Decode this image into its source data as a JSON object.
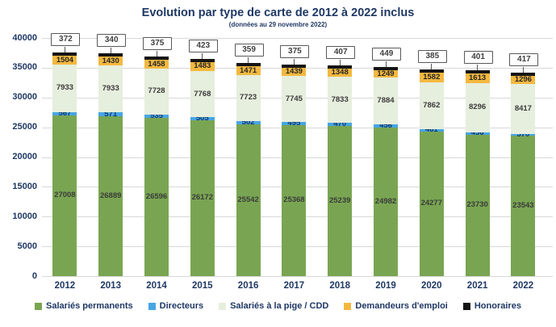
{
  "title": "Evolution par type de carte de 2012 à 2022 inclus",
  "subtitle": "(données au 29 novembre 2022)",
  "colors": {
    "title_text": "#1F3864",
    "axis_text": "#1F3864",
    "gridline": "#D8D8D8",
    "bar_label": "#3B3B3B",
    "callout_border": "#595959",
    "salaries_permanents": "#79A552",
    "directeurs": "#47A5E5",
    "pige_cdd": "#E6EEDD",
    "demandeurs_emploi": "#F3B83F",
    "honoraires": "#141414"
  },
  "chart_data": {
    "type": "bar",
    "stacked": true,
    "title": "Evolution par type de carte de 2012 à 2022 inclus",
    "subtitle": "(données au 29 novembre 2022)",
    "categories": [
      "2012",
      "2013",
      "2014",
      "2015",
      "2016",
      "2017",
      "2018",
      "2019",
      "2020",
      "2021",
      "2022"
    ],
    "series": [
      {
        "name": "Salariés permanents",
        "key": "permanents",
        "color": "#79A552",
        "values": [
          27008,
          26889,
          26596,
          26172,
          25542,
          25368,
          25239,
          24982,
          24277,
          23730,
          23543
        ]
      },
      {
        "name": "Directeurs",
        "key": "directeurs",
        "color": "#47A5E5",
        "values": [
          567,
          571,
          535,
          505,
          502,
          495,
          470,
          456,
          461,
          436,
          370
        ]
      },
      {
        "name": "Salariés à la pige / CDD",
        "key": "pige",
        "color": "#E6EEDD",
        "values": [
          7933,
          7933,
          7728,
          7768,
          7723,
          7745,
          7833,
          7884,
          7862,
          8296,
          8417
        ]
      },
      {
        "name": "Demandeurs d'emploi",
        "key": "demandeurs",
        "color": "#F3B83F",
        "values": [
          1504,
          1430,
          1458,
          1483,
          1471,
          1439,
          1348,
          1249,
          1582,
          1613,
          1296
        ]
      },
      {
        "name": "Honoraires",
        "key": "honoraires",
        "color": "#141414",
        "values": [
          372,
          340,
          375,
          423,
          359,
          375,
          407,
          449,
          385,
          401,
          417
        ]
      }
    ],
    "xlabel": "",
    "ylabel": "",
    "ylim": [
      0,
      40000
    ],
    "yticks": [
      0,
      5000,
      10000,
      15000,
      20000,
      25000,
      30000,
      35000,
      40000
    ],
    "grid": true,
    "legend_position": "bottom"
  }
}
